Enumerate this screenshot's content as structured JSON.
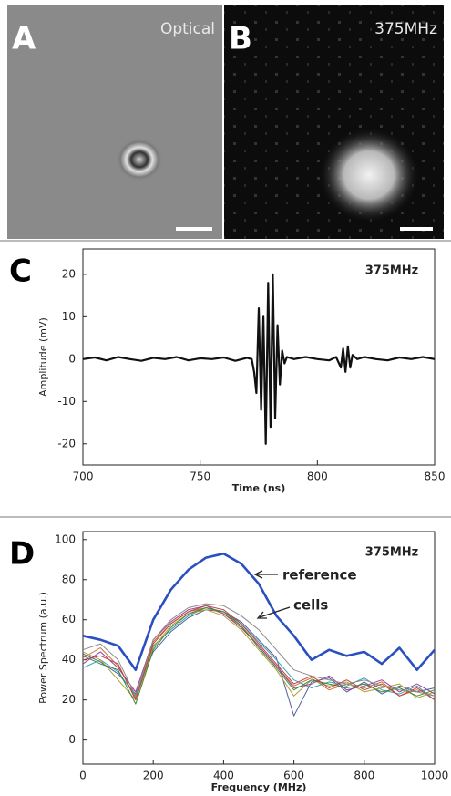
{
  "images": [
    {
      "letter": "A",
      "label": "Optical"
    },
    {
      "letter": "B",
      "label": "375MHz"
    }
  ],
  "chart_data": [
    {
      "type": "line",
      "letter": "C",
      "annotation": "375MHz",
      "x_label": "Time (ns)",
      "y_label": "Amplitude (mV)",
      "xlim": [
        700,
        850
      ],
      "xticks": [
        700,
        750,
        800,
        850
      ],
      "ylim": [
        -25,
        26
      ],
      "yticks": [
        -20,
        -10,
        0,
        10,
        20
      ],
      "color": "#111111",
      "x": [
        700,
        705,
        710,
        715,
        720,
        725,
        730,
        735,
        740,
        745,
        750,
        755,
        760,
        765,
        770,
        772,
        773,
        774,
        775,
        776,
        777,
        778,
        779,
        780,
        781,
        782,
        783,
        784,
        785,
        786,
        787,
        790,
        795,
        800,
        805,
        808,
        810,
        811,
        812,
        813,
        814,
        815,
        817,
        820,
        825,
        830,
        835,
        840,
        845,
        850
      ],
      "values": [
        0,
        0.4,
        -0.3,
        0.5,
        0,
        -0.4,
        0.3,
        0,
        0.5,
        -0.3,
        0.2,
        0,
        0.4,
        -0.4,
        0.3,
        0,
        -3,
        -8,
        12,
        -12,
        10,
        -20,
        18,
        -16,
        20,
        -14,
        8,
        -6,
        2,
        -1,
        0.5,
        0,
        0.5,
        0,
        -0.3,
        0.5,
        -2,
        2.5,
        -3,
        3,
        -2,
        1,
        0,
        0.5,
        0,
        -0.3,
        0.4,
        0,
        0.5,
        0
      ]
    },
    {
      "type": "line",
      "letter": "D",
      "annotation": "375MHz",
      "reference_label": "reference",
      "cells_label": "cells",
      "x_label": "Frequency (MHz)",
      "y_label": "Power Spectrum (a.u.)",
      "xlim": [
        0,
        1000
      ],
      "xticks": [
        0,
        200,
        400,
        600,
        800,
        1000
      ],
      "ylim": [
        -12,
        104
      ],
      "yticks": [
        0,
        20,
        40,
        60,
        80,
        100
      ],
      "x": [
        0,
        50,
        100,
        150,
        200,
        250,
        300,
        350,
        400,
        450,
        500,
        550,
        600,
        650,
        700,
        750,
        800,
        850,
        900,
        950,
        1000
      ],
      "series": [
        {
          "name": "reference",
          "color": "#2a4fc0",
          "values": [
            52,
            50,
            47,
            35,
            60,
            75,
            85,
            91,
            93,
            88,
            78,
            62,
            52,
            40,
            45,
            42,
            44,
            38,
            46,
            35,
            45
          ]
        },
        {
          "color": "#8b8b8b",
          "values": [
            45,
            48,
            40,
            22,
            50,
            60,
            66,
            68,
            67,
            62,
            55,
            45,
            35,
            32,
            30,
            28,
            30,
            27,
            25,
            24,
            22
          ]
        },
        {
          "color": "#c04040",
          "values": [
            40,
            42,
            38,
            20,
            48,
            58,
            64,
            67,
            65,
            58,
            48,
            38,
            28,
            32,
            26,
            30,
            25,
            28,
            22,
            26,
            20
          ]
        },
        {
          "color": "#3a8a3a",
          "values": [
            42,
            38,
            35,
            18,
            45,
            56,
            63,
            66,
            64,
            57,
            46,
            36,
            25,
            30,
            28,
            26,
            28,
            24,
            26,
            22,
            25
          ]
        },
        {
          "color": "#9a40a0",
          "values": [
            38,
            44,
            36,
            24,
            50,
            59,
            65,
            67,
            63,
            56,
            47,
            37,
            26,
            28,
            32,
            25,
            27,
            30,
            24,
            28,
            23
          ]
        },
        {
          "color": "#b0a030",
          "values": [
            44,
            40,
            30,
            20,
            46,
            57,
            63,
            65,
            62,
            55,
            45,
            35,
            22,
            30,
            27,
            29,
            24,
            26,
            28,
            21,
            24
          ]
        },
        {
          "color": "#40a0b0",
          "values": [
            36,
            40,
            34,
            22,
            47,
            55,
            62,
            66,
            64,
            58,
            49,
            40,
            30,
            26,
            29,
            27,
            31,
            25,
            23,
            27,
            20
          ]
        },
        {
          "color": "#d07030",
          "values": [
            41,
            46,
            37,
            21,
            49,
            58,
            64,
            66,
            63,
            57,
            47,
            37,
            27,
            31,
            25,
            28,
            26,
            29,
            22,
            25,
            22
          ]
        },
        {
          "color": "#5060a0",
          "values": [
            43,
            39,
            33,
            23,
            44,
            54,
            61,
            65,
            64,
            59,
            50,
            41,
            12,
            29,
            31,
            24,
            29,
            23,
            27,
            24,
            26
          ]
        }
      ]
    }
  ]
}
